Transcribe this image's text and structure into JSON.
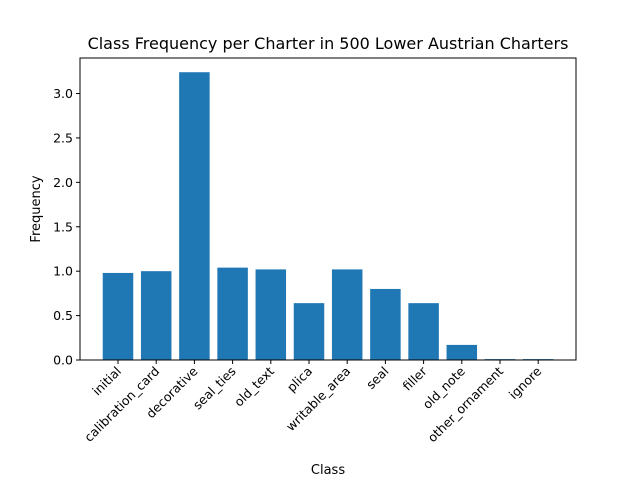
{
  "chart_data": {
    "type": "bar",
    "title": "Class Frequency per Charter in 500 Lower Austrian Charters",
    "xlabel": "Class",
    "ylabel": "Frequency",
    "categories": [
      "initial",
      "calibration_card",
      "decorative",
      "seal_ties",
      "old_text",
      "plica",
      "writable_area",
      "seal",
      "filler",
      "old_note",
      "other_ornament",
      "ignore"
    ],
    "values": [
      0.98,
      1.0,
      3.24,
      1.04,
      1.02,
      0.64,
      1.02,
      0.8,
      0.64,
      0.17,
      0.01,
      0.01
    ],
    "yticks": [
      "0.0",
      "0.5",
      "1.0",
      "1.5",
      "2.0",
      "2.5",
      "3.0"
    ],
    "ylim": [
      0,
      3.4
    ],
    "bar_color": "#1f77b4",
    "grid": false
  }
}
